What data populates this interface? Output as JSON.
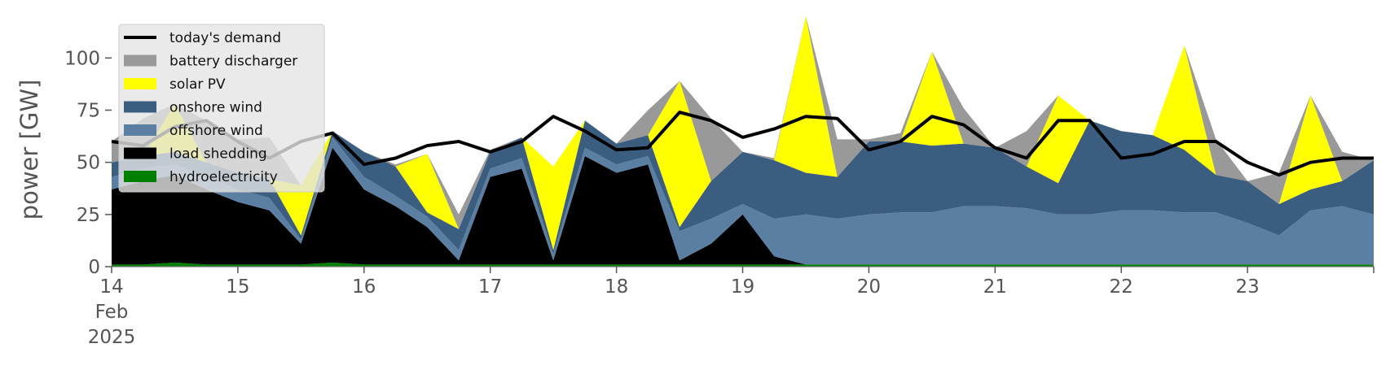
{
  "chart_data": {
    "type": "area",
    "title": "",
    "xlabel": "",
    "ylabel": "power [GW]",
    "xlim": [
      "2025-02-14 00:00",
      "2025-02-24 00:00"
    ],
    "ylim": [
      0,
      120
    ],
    "yticks": [
      0,
      25,
      50,
      75,
      100
    ],
    "xticks": [
      {
        "date": "2025-02-14",
        "lines": [
          "14",
          "Feb",
          "2025"
        ]
      },
      {
        "date": "2025-02-15",
        "lines": [
          "15"
        ]
      },
      {
        "date": "2025-02-16",
        "lines": [
          "16"
        ]
      },
      {
        "date": "2025-02-17",
        "lines": [
          "17"
        ]
      },
      {
        "date": "2025-02-18",
        "lines": [
          "18"
        ]
      },
      {
        "date": "2025-02-19",
        "lines": [
          "19"
        ]
      },
      {
        "date": "2025-02-20",
        "lines": [
          "20"
        ]
      },
      {
        "date": "2025-02-21",
        "lines": [
          "21"
        ]
      },
      {
        "date": "2025-02-22",
        "lines": [
          "22"
        ]
      },
      {
        "date": "2025-02-23",
        "lines": [
          "23"
        ]
      }
    ],
    "grid": false,
    "legend_position": "top-left",
    "x": [
      "2025-02-14 00:00",
      "2025-02-14 06:00",
      "2025-02-14 12:00",
      "2025-02-14 18:00",
      "2025-02-15 00:00",
      "2025-02-15 06:00",
      "2025-02-15 12:00",
      "2025-02-15 18:00",
      "2025-02-16 00:00",
      "2025-02-16 06:00",
      "2025-02-16 12:00",
      "2025-02-16 18:00",
      "2025-02-17 00:00",
      "2025-02-17 06:00",
      "2025-02-17 12:00",
      "2025-02-17 18:00",
      "2025-02-18 00:00",
      "2025-02-18 06:00",
      "2025-02-18 12:00",
      "2025-02-18 18:00",
      "2025-02-19 00:00",
      "2025-02-19 06:00",
      "2025-02-19 12:00",
      "2025-02-19 18:00",
      "2025-02-20 00:00",
      "2025-02-20 06:00",
      "2025-02-20 12:00",
      "2025-02-20 18:00",
      "2025-02-21 00:00",
      "2025-02-21 06:00",
      "2025-02-21 12:00",
      "2025-02-21 18:00",
      "2025-02-22 00:00",
      "2025-02-22 06:00",
      "2025-02-22 12:00",
      "2025-02-22 18:00",
      "2025-02-23 00:00",
      "2025-02-23 06:00",
      "2025-02-23 12:00",
      "2025-02-23 18:00",
      "2025-02-24 00:00"
    ],
    "stack_order": [
      "hydroelectricity",
      "load shedding",
      "offshore wind",
      "onshore wind",
      "solar PV",
      "battery discharger"
    ],
    "series": [
      {
        "name": "hydroelectricity",
        "kind": "area",
        "color": "#008000",
        "values": [
          1,
          1,
          2,
          1,
          1,
          1,
          1,
          2,
          1,
          1,
          1,
          1,
          1,
          1,
          1,
          1,
          1,
          1,
          1,
          1,
          1,
          1,
          1,
          1,
          1,
          1,
          1,
          1,
          1,
          1,
          1,
          1,
          1,
          1,
          1,
          1,
          1,
          1,
          1,
          1,
          1
        ]
      },
      {
        "name": "load shedding",
        "kind": "area",
        "color": "#000000",
        "values": [
          36,
          40,
          42,
          36,
          30,
          26,
          10,
          55,
          36,
          28,
          18,
          2,
          42,
          46,
          2,
          52,
          44,
          48,
          2,
          10,
          24,
          4,
          0,
          0,
          0,
          0,
          0,
          0,
          0,
          0,
          0,
          0,
          0,
          0,
          0,
          0,
          0,
          0,
          0,
          0,
          0
        ]
      },
      {
        "name": "offshore wind",
        "kind": "area",
        "color": "#5b7fa3",
        "values": [
          6,
          6,
          5,
          6,
          6,
          6,
          2,
          5,
          6,
          5,
          5,
          5,
          4,
          5,
          3,
          4,
          4,
          4,
          14,
          12,
          5,
          18,
          24,
          22,
          24,
          25,
          25,
          28,
          28,
          27,
          24,
          24,
          26,
          26,
          25,
          25,
          20,
          14,
          26,
          28,
          24
        ]
      },
      {
        "name": "onshore wind",
        "kind": "area",
        "color": "#3b5e80",
        "values": [
          7,
          6,
          6,
          7,
          8,
          9,
          2,
          3,
          12,
          14,
          2,
          10,
          8,
          10,
          2,
          13,
          10,
          10,
          2,
          18,
          25,
          28,
          20,
          20,
          35,
          34,
          32,
          30,
          28,
          20,
          15,
          45,
          38,
          36,
          30,
          18,
          20,
          15,
          10,
          12,
          26
        ]
      },
      {
        "name": "solar PV",
        "kind": "area",
        "color": "#ffff00",
        "values": [
          0,
          0,
          23,
          0,
          0,
          0,
          24,
          0,
          0,
          0,
          28,
          0,
          0,
          0,
          40,
          0,
          0,
          0,
          70,
          0,
          0,
          0,
          80,
          0,
          0,
          0,
          45,
          0,
          0,
          0,
          42,
          0,
          0,
          0,
          50,
          0,
          0,
          0,
          45,
          0,
          0
        ]
      },
      {
        "name": "battery discharger",
        "kind": "area",
        "color": "#999999",
        "values": [
          10,
          18,
          0,
          20,
          16,
          20,
          0,
          0,
          0,
          1,
          0,
          7,
          1,
          0,
          0,
          0,
          0,
          12,
          0,
          30,
          0,
          1,
          0,
          18,
          1,
          4,
          0,
          17,
          0,
          17,
          0,
          0,
          0,
          0,
          0,
          17,
          0,
          15,
          0,
          14,
          0
        ]
      },
      {
        "name": "today's demand",
        "kind": "line",
        "color": "#000000",
        "values": [
          60,
          58,
          67,
          70,
          60,
          52,
          60,
          64,
          49,
          52,
          58,
          60,
          55,
          60,
          72,
          65,
          56,
          57,
          74,
          70,
          62,
          66,
          72,
          71,
          56,
          60,
          72,
          68,
          57,
          52,
          70,
          70,
          52,
          54,
          60,
          60,
          50,
          44,
          50,
          52,
          52
        ]
      }
    ],
    "legend": [
      {
        "label": "today's demand",
        "kind": "line",
        "color": "#000000"
      },
      {
        "label": "battery discharger",
        "kind": "patch",
        "color": "#999999"
      },
      {
        "label": "solar PV",
        "kind": "patch",
        "color": "#ffff00"
      },
      {
        "label": "onshore wind",
        "kind": "patch",
        "color": "#3b5e80"
      },
      {
        "label": "offshore wind",
        "kind": "patch",
        "color": "#5b7fa3"
      },
      {
        "label": "load shedding",
        "kind": "patch",
        "color": "#000000"
      },
      {
        "label": "hydroelectricity",
        "kind": "patch",
        "color": "#008000"
      }
    ]
  }
}
